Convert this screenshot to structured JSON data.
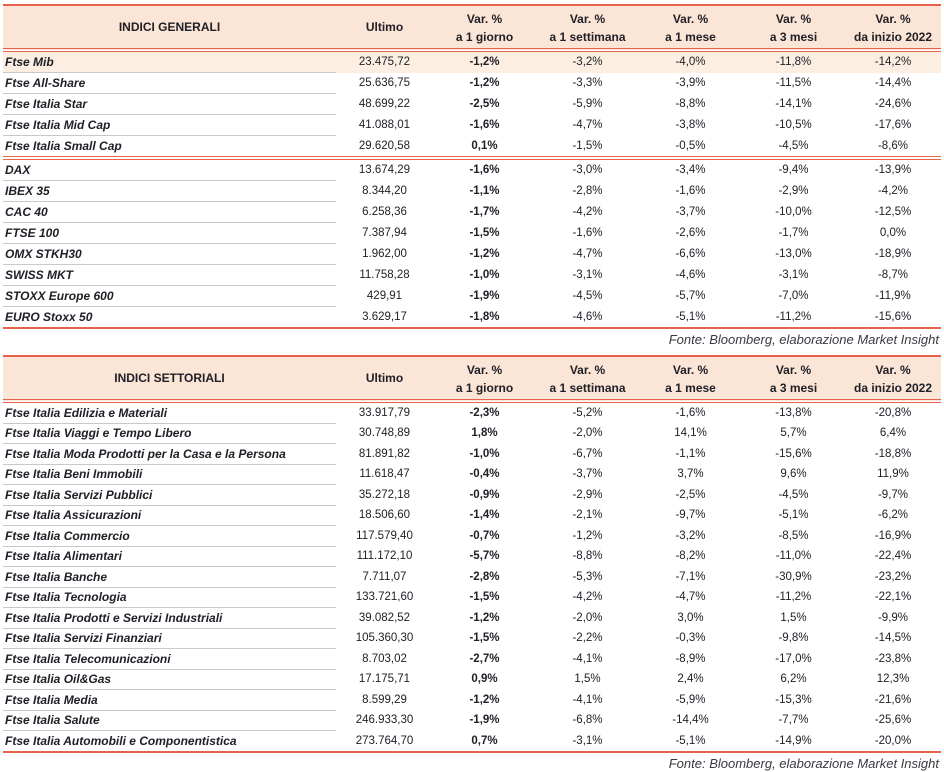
{
  "colors": {
    "accent": "#E8614C",
    "header_bg": "#FBE5D6",
    "highlight_row_bg": "#FCEFE2",
    "divider_gray": "#C9C9C9",
    "text": "#202028",
    "fonte_text": "#3A3A42"
  },
  "tables": [
    {
      "title": "INDICI GENERALI",
      "header": {
        "ultimo_label": "Ultimo",
        "var_label": "Var. %",
        "periods": [
          "a 1 giorno",
          "a 1 settimana",
          "a 1 mese",
          "a 3 mesi",
          "da inizio 2022"
        ]
      },
      "groups": [
        {
          "rows": [
            {
              "name": "Ftse Mib",
              "highlight": true,
              "values": [
                "23.475,72",
                "-1,2%",
                "-3,2%",
                "-4,0%",
                "-11,8%",
                "-14,2%"
              ]
            },
            {
              "name": "Ftse All-Share",
              "values": [
                "25.636,75",
                "-1,2%",
                "-3,3%",
                "-3,9%",
                "-11,5%",
                "-14,4%"
              ]
            },
            {
              "name": "Ftse Italia Star",
              "values": [
                "48.699,22",
                "-2,5%",
                "-5,9%",
                "-8,8%",
                "-14,1%",
                "-24,6%"
              ]
            },
            {
              "name": "Ftse Italia Mid Cap",
              "values": [
                "41.088,01",
                "-1,6%",
                "-4,7%",
                "-3,8%",
                "-10,5%",
                "-17,6%"
              ]
            },
            {
              "name": "Ftse Italia Small Cap",
              "values": [
                "29.620,58",
                "0,1%",
                "-1,5%",
                "-0,5%",
                "-4,5%",
                "-8,6%"
              ]
            }
          ]
        },
        {
          "rows": [
            {
              "name": "DAX",
              "values": [
                "13.674,29",
                "-1,6%",
                "-3,0%",
                "-3,4%",
                "-9,4%",
                "-13,9%"
              ]
            },
            {
              "name": "IBEX 35",
              "values": [
                "8.344,20",
                "-1,1%",
                "-2,8%",
                "-1,6%",
                "-2,9%",
                "-4,2%"
              ]
            },
            {
              "name": "CAC 40",
              "values": [
                "6.258,36",
                "-1,7%",
                "-4,2%",
                "-3,7%",
                "-10,0%",
                "-12,5%"
              ]
            },
            {
              "name": "FTSE 100",
              "values": [
                "7.387,94",
                "-1,5%",
                "-1,6%",
                "-2,6%",
                "-1,7%",
                "0,0%"
              ]
            },
            {
              "name": "OMX STKH30",
              "values": [
                "1.962,00",
                "-1,2%",
                "-4,7%",
                "-6,6%",
                "-13,0%",
                "-18,9%"
              ]
            },
            {
              "name": "SWISS MKT",
              "values": [
                "11.758,28",
                "-1,0%",
                "-3,1%",
                "-4,6%",
                "-3,1%",
                "-8,7%"
              ]
            },
            {
              "name": "STOXX Europe 600",
              "values": [
                "429,91",
                "-1,9%",
                "-4,5%",
                "-5,7%",
                "-7,0%",
                "-11,9%"
              ]
            },
            {
              "name": "EURO Stoxx 50",
              "values": [
                "3.629,17",
                "-1,8%",
                "-4,6%",
                "-5,1%",
                "-11,2%",
                "-15,6%"
              ]
            }
          ]
        }
      ],
      "fonte": "Fonte: Bloomberg, elaborazione Market Insight"
    },
    {
      "title": "INDICI SETTORIALI",
      "header": {
        "ultimo_label": "Ultimo",
        "var_label": "Var. %",
        "periods": [
          "a 1 giorno",
          "a 1 settimana",
          "a 1 mese",
          "a 3 mesi",
          "da inizio 2022"
        ]
      },
      "groups": [
        {
          "rows": [
            {
              "name": "Ftse Italia Edilizia e Materiali",
              "values": [
                "33.917,79",
                "-2,3%",
                "-5,2%",
                "-1,6%",
                "-13,8%",
                "-20,8%"
              ]
            },
            {
              "name": "Ftse Italia Viaggi e Tempo Libero",
              "values": [
                "30.748,89",
                "1,8%",
                "-2,0%",
                "14,1%",
                "5,7%",
                "6,4%"
              ]
            },
            {
              "name": "Ftse Italia Moda Prodotti per la Casa e la Persona",
              "values": [
                "81.891,82",
                "-1,0%",
                "-6,7%",
                "-1,1%",
                "-15,6%",
                "-18,8%"
              ]
            },
            {
              "name": "Ftse Italia Beni Immobili",
              "values": [
                "11.618,47",
                "-0,4%",
                "-3,7%",
                "3,7%",
                "9,6%",
                "11,9%"
              ]
            },
            {
              "name": "Ftse Italia Servizi Pubblici",
              "values": [
                "35.272,18",
                "-0,9%",
                "-2,9%",
                "-2,5%",
                "-4,5%",
                "-9,7%"
              ]
            },
            {
              "name": "Ftse Italia Assicurazioni",
              "values": [
                "18.506,60",
                "-1,4%",
                "-2,1%",
                "-9,7%",
                "-5,1%",
                "-6,2%"
              ]
            },
            {
              "name": "Ftse Italia Commercio",
              "values": [
                "117.579,40",
                "-0,7%",
                "-1,2%",
                "-3,2%",
                "-8,5%",
                "-16,9%"
              ]
            },
            {
              "name": "Ftse Italia Alimentari",
              "values": [
                "111.172,10",
                "-5,7%",
                "-8,8%",
                "-8,2%",
                "-11,0%",
                "-22,4%"
              ]
            },
            {
              "name": "Ftse Italia Banche",
              "values": [
                "7.711,07",
                "-2,8%",
                "-5,3%",
                "-7,1%",
                "-30,9%",
                "-23,2%"
              ]
            },
            {
              "name": "Ftse Italia Tecnologia",
              "values": [
                "133.721,60",
                "-1,5%",
                "-4,2%",
                "-4,7%",
                "-11,2%",
                "-22,1%"
              ]
            },
            {
              "name": "Ftse Italia Prodotti e Servizi Industriali",
              "values": [
                "39.082,52",
                "-1,2%",
                "-2,0%",
                "3,0%",
                "1,5%",
                "-9,9%"
              ]
            },
            {
              "name": "Ftse Italia Servizi Finanziari",
              "values": [
                "105.360,30",
                "-1,5%",
                "-2,2%",
                "-0,3%",
                "-9,8%",
                "-14,5%"
              ]
            },
            {
              "name": "Ftse Italia Telecomunicazioni",
              "values": [
                "8.703,02",
                "-2,7%",
                "-4,1%",
                "-8,9%",
                "-17,0%",
                "-23,8%"
              ]
            },
            {
              "name": "Ftse Italia Oil&Gas",
              "values": [
                "17.175,71",
                "0,9%",
                "1,5%",
                "2,4%",
                "6,2%",
                "12,3%"
              ]
            },
            {
              "name": "Ftse Italia Media",
              "values": [
                "8.599,29",
                "-1,2%",
                "-4,1%",
                "-5,9%",
                "-15,3%",
                "-21,6%"
              ]
            },
            {
              "name": "Ftse Italia Salute",
              "values": [
                "246.933,30",
                "-1,9%",
                "-6,8%",
                "-14,4%",
                "-7,7%",
                "-25,6%"
              ]
            },
            {
              "name": "Ftse Italia Automobili e Componentistica",
              "values": [
                "273.764,70",
                "0,7%",
                "-3,1%",
                "-5,1%",
                "-14,9%",
                "-20,0%"
              ]
            }
          ]
        }
      ],
      "fonte": "Fonte: Bloomberg, elaborazione Market Insight"
    }
  ]
}
